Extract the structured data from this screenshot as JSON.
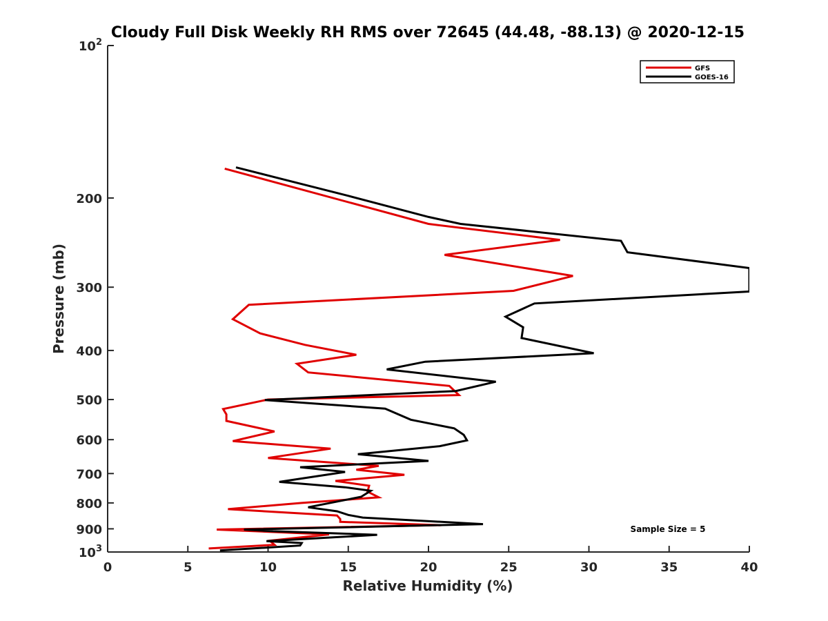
{
  "chart_data": {
    "type": "line",
    "title": "Cloudy Full Disk Weekly RH RMS over 72645 (44.48, -88.13) @ 2020-12-15",
    "xlabel": "Relative Humidity (%)",
    "ylabel": "Pressure (mb)",
    "xlim": [
      0,
      40
    ],
    "ylim": [
      100,
      1000
    ],
    "yscale": "log",
    "y_reversed": true,
    "grid": false,
    "legend_position": "top-right",
    "x_ticks": [
      "0",
      "5",
      "10",
      "15",
      "20",
      "25",
      "30",
      "35",
      "40"
    ],
    "x_tick_values": [
      0,
      5,
      10,
      15,
      20,
      25,
      30,
      35,
      40
    ],
    "y_ticks": [
      {
        "value": 100,
        "base": "10",
        "exp": "2"
      },
      {
        "value": 200,
        "label": "200"
      },
      {
        "value": 300,
        "label": "300"
      },
      {
        "value": 400,
        "label": "400"
      },
      {
        "value": 500,
        "label": "500"
      },
      {
        "value": 600,
        "label": "600"
      },
      {
        "value": 700,
        "label": "700"
      },
      {
        "value": 800,
        "label": "800"
      },
      {
        "value": 900,
        "label": "900"
      },
      {
        "value": 1000,
        "base": "10",
        "exp": "3"
      }
    ],
    "annotation": "Sample Size = 5",
    "series": [
      {
        "name": "GFS",
        "color": "#e00000",
        "points": [
          [
            7.3,
            175
          ],
          [
            20.0,
            225
          ],
          [
            28.2,
            242
          ],
          [
            21.0,
            259
          ],
          [
            29.0,
            285
          ],
          [
            25.3,
            305
          ],
          [
            8.8,
            325
          ],
          [
            7.8,
            347
          ],
          [
            9.5,
            370
          ],
          [
            12.3,
            390
          ],
          [
            15.5,
            408
          ],
          [
            11.8,
            425
          ],
          [
            12.5,
            442
          ],
          [
            21.3,
            470
          ],
          [
            21.9,
            490
          ],
          [
            10.0,
            500
          ],
          [
            7.2,
            522
          ],
          [
            7.4,
            535
          ],
          [
            7.4,
            551
          ],
          [
            10.4,
            578
          ],
          [
            7.8,
            604
          ],
          [
            13.9,
            625
          ],
          [
            10.0,
            652
          ],
          [
            16.9,
            676
          ],
          [
            15.5,
            688
          ],
          [
            18.5,
            704
          ],
          [
            14.2,
            724
          ],
          [
            16.3,
            740
          ],
          [
            16.2,
            760
          ],
          [
            16.9,
            780
          ],
          [
            12.1,
            800
          ],
          [
            7.5,
            823
          ],
          [
            14.3,
            847
          ],
          [
            14.5,
            861
          ],
          [
            14.5,
            872
          ],
          [
            20.8,
            885
          ],
          [
            6.8,
            903
          ],
          [
            13.8,
            923
          ],
          [
            10.1,
            950
          ],
          [
            10.4,
            968
          ],
          [
            6.3,
            984
          ]
        ]
      },
      {
        "name": "GOES-16",
        "color": "#000000",
        "points": [
          [
            8.0,
            174
          ],
          [
            15.0,
            198
          ],
          [
            20.0,
            218
          ],
          [
            22.0,
            225
          ],
          [
            32.0,
            243
          ],
          [
            32.4,
            256
          ],
          [
            40.0,
            275
          ],
          [
            40.0,
            306
          ],
          [
            26.6,
            323
          ],
          [
            24.8,
            343
          ],
          [
            25.9,
            360
          ],
          [
            25.8,
            378
          ],
          [
            30.3,
            405
          ],
          [
            19.8,
            421
          ],
          [
            17.4,
            436
          ],
          [
            24.2,
            461
          ],
          [
            21.7,
            481
          ],
          [
            9.8,
            501
          ],
          [
            17.3,
            521
          ],
          [
            18.9,
            548
          ],
          [
            21.6,
            570
          ],
          [
            22.2,
            587
          ],
          [
            22.4,
            602
          ],
          [
            20.7,
            618
          ],
          [
            15.6,
            641
          ],
          [
            20.0,
            661
          ],
          [
            12.0,
            680
          ],
          [
            14.8,
            695
          ],
          [
            10.7,
            727
          ],
          [
            14.8,
            745
          ],
          [
            16.4,
            757
          ],
          [
            15.8,
            778
          ],
          [
            12.5,
            816
          ],
          [
            14.3,
            831
          ],
          [
            15.0,
            845
          ],
          [
            15.9,
            855
          ],
          [
            23.4,
            881
          ],
          [
            8.5,
            903
          ],
          [
            10.3,
            910
          ],
          [
            16.8,
            925
          ],
          [
            9.9,
            952
          ],
          [
            12.1,
            960
          ],
          [
            12.0,
            971
          ],
          [
            7.0,
            993
          ]
        ]
      }
    ]
  }
}
